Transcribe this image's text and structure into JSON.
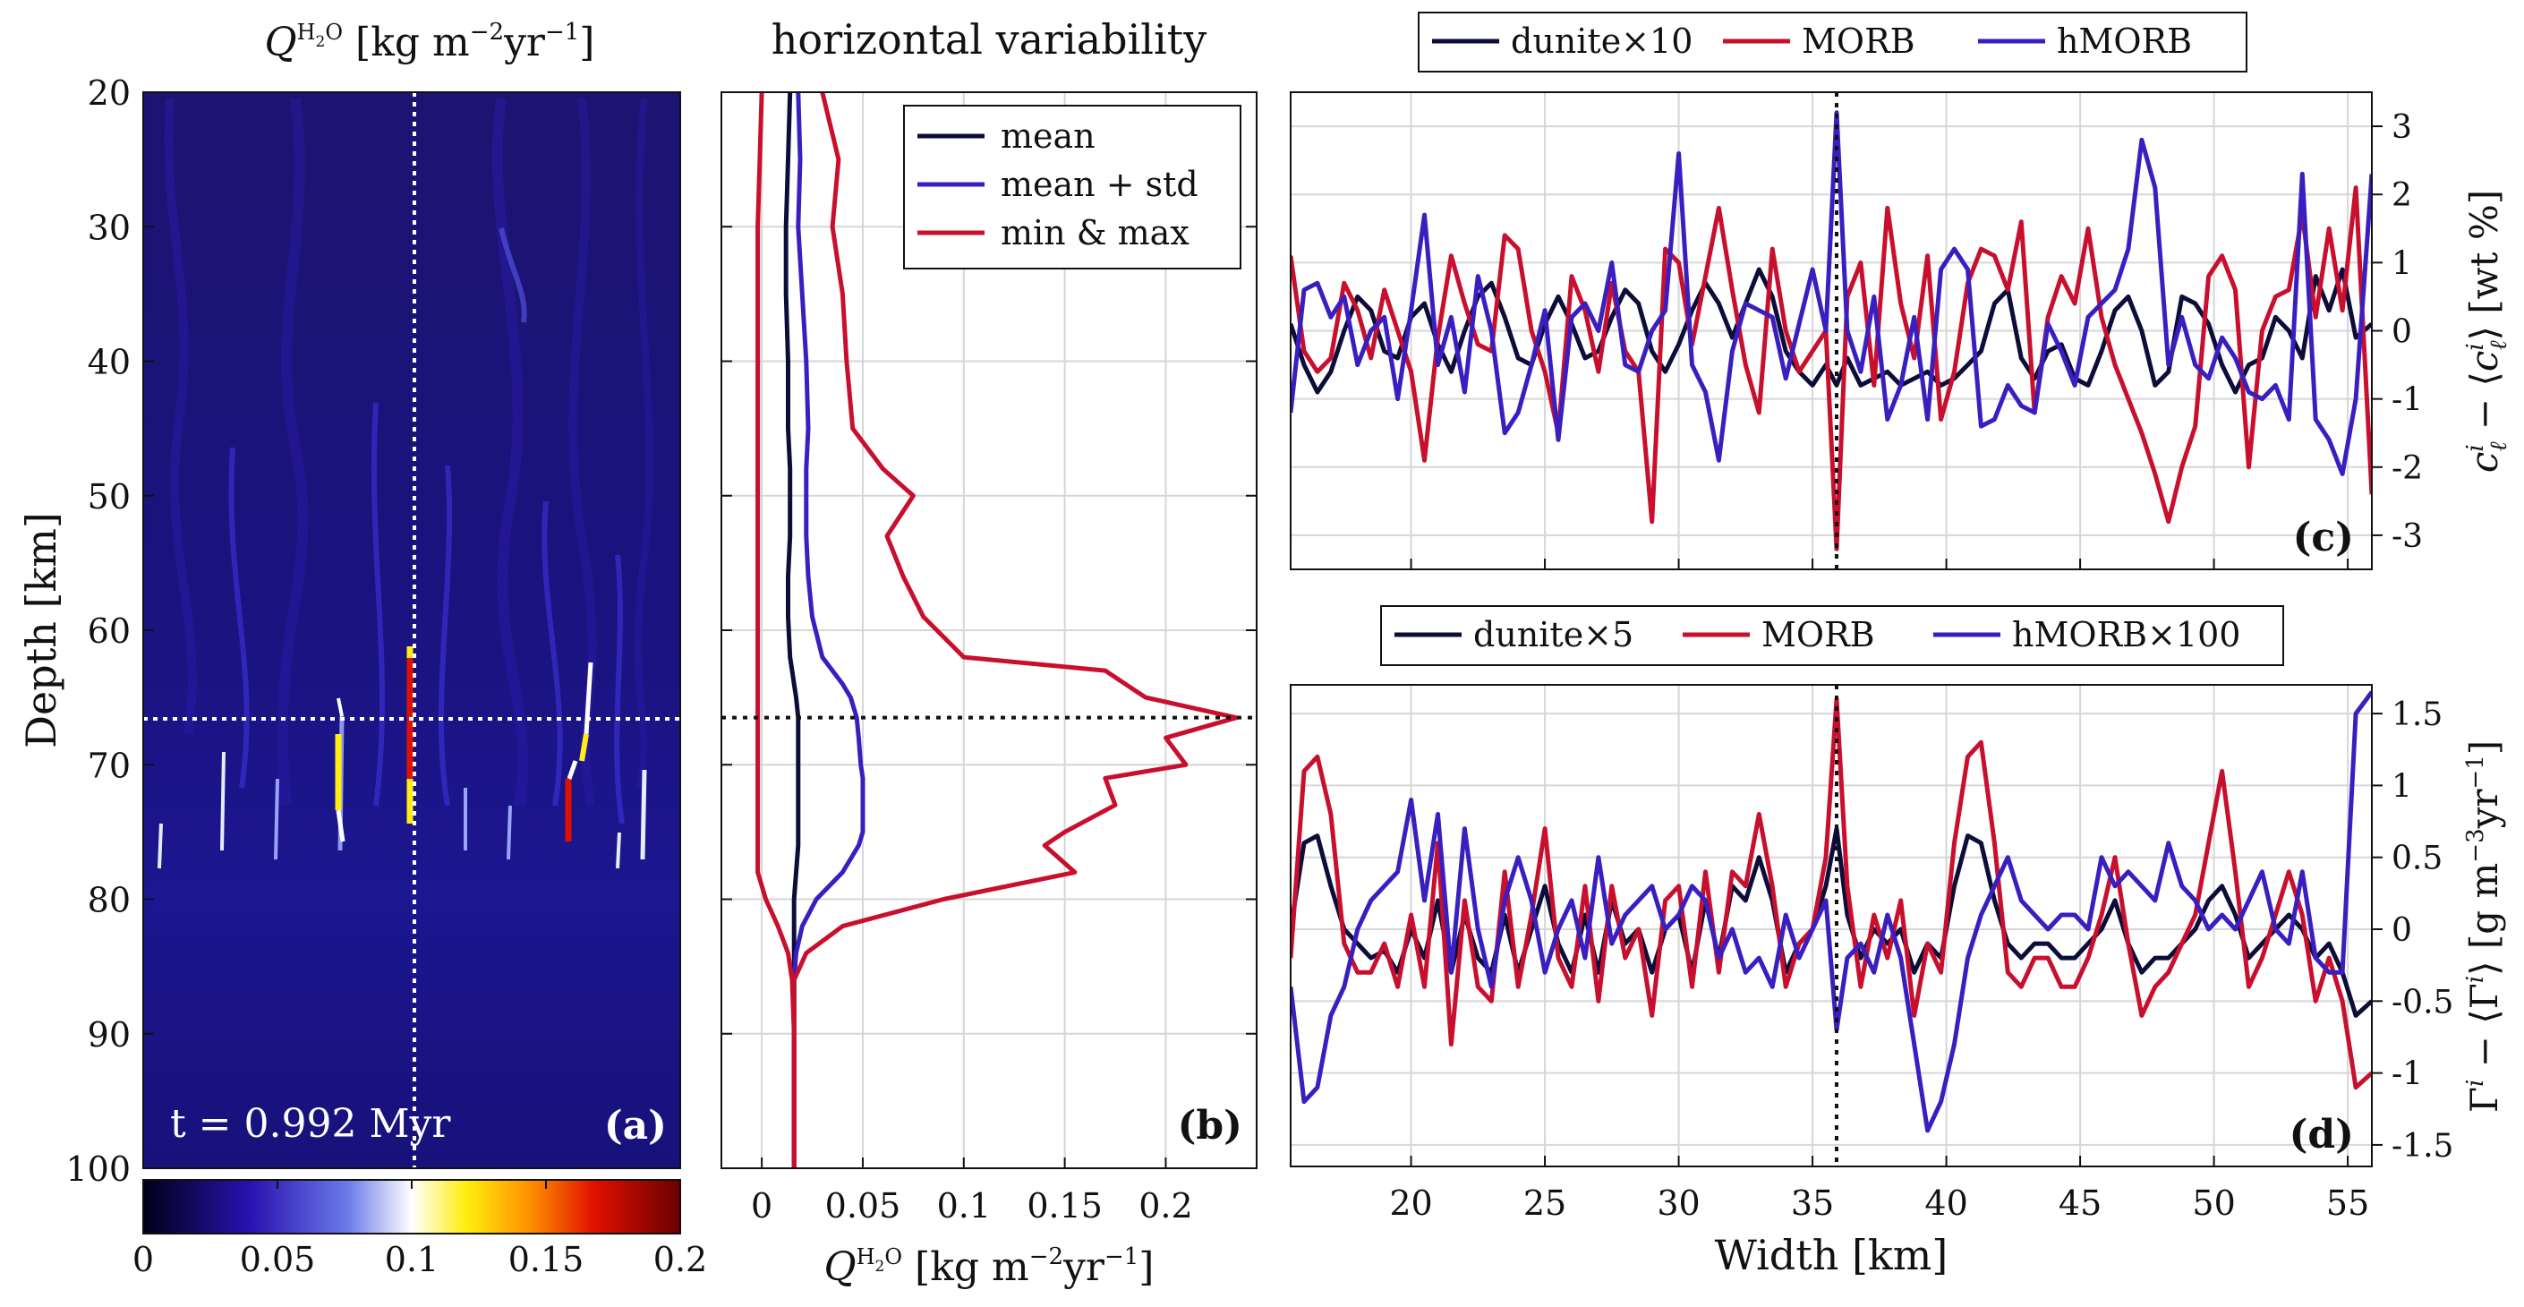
{
  "panel_a": {
    "title": "Q^H2O [kg m^-2 yr^-1]",
    "ylabel": "Depth [km]",
    "annotation": "t = 0.992 Myr",
    "panel_label": "(a)"
  },
  "panel_b": {
    "title": "horizontal variability",
    "xlabel": "Q^H2O [kg m^-2 yr^-1]",
    "panel_label": "(b)"
  },
  "panel_c": {
    "panel_label": "(c)",
    "ylabel": "c_l^i − ⟨c_l^i⟩ [wt %]"
  },
  "panel_d": {
    "panel_label": "(d)",
    "ylabel": "Γ^i − ⟨Γ^i⟩ [g m^-3 yr^-1]",
    "xlabel": "Width [km]"
  },
  "colors": {
    "dark": "#0d0d3a",
    "red": "#c8102e",
    "blue": "#3a1fc0",
    "field_bg": "#1a1370"
  },
  "chart_data": [
    {
      "id": "a",
      "type": "heatmap",
      "title": "Q^H2O [kg m^-2 yr^-1]",
      "ylabel": "Depth [km]",
      "ylim": [
        20,
        100
      ],
      "yticks": [
        20,
        30,
        40,
        50,
        60,
        70,
        80,
        90,
        100
      ],
      "colorbar": {
        "ticks": [
          0,
          0.05,
          0.1,
          0.15,
          0.2
        ],
        "range": [
          0,
          0.2
        ]
      },
      "crosshair": {
        "depth": 66.5,
        "width_km": 35.9
      },
      "annotation": "t = 0.992 Myr"
    },
    {
      "id": "b",
      "type": "line",
      "title": "horizontal variability",
      "xlim": [
        -0.02,
        0.245
      ],
      "xticks": [
        0,
        0.05,
        0.1,
        0.15,
        0.2
      ],
      "xtick_labels": [
        "0",
        "0.05",
        "0.1",
        "0.15",
        "0.2"
      ],
      "ylim": [
        20,
        100
      ],
      "marker_depth": 66.5,
      "legend": [
        "mean",
        "mean + std",
        "min & max"
      ],
      "depth": [
        20,
        25,
        30,
        35,
        40,
        45,
        48,
        50,
        53,
        56,
        59,
        62,
        63,
        64,
        65,
        66.5,
        68,
        70,
        71,
        73,
        75,
        76,
        78,
        80,
        82,
        84,
        86,
        90,
        95,
        100
      ],
      "series": [
        {
          "name": "mean",
          "values": [
            0.014,
            0.013,
            0.012,
            0.012,
            0.013,
            0.013,
            0.014,
            0.014,
            0.014,
            0.013,
            0.013,
            0.014,
            0.015,
            0.016,
            0.017,
            0.018,
            0.018,
            0.018,
            0.018,
            0.018,
            0.018,
            0.018,
            0.017,
            0.016,
            0.016,
            0.016,
            0.016,
            0.016,
            0.016,
            0.016
          ]
        },
        {
          "name": "mean + std",
          "values": [
            0.018,
            0.019,
            0.018,
            0.02,
            0.022,
            0.023,
            0.022,
            0.022,
            0.022,
            0.023,
            0.025,
            0.03,
            0.035,
            0.04,
            0.044,
            0.047,
            0.048,
            0.049,
            0.05,
            0.05,
            0.05,
            0.048,
            0.04,
            0.027,
            0.02,
            0.017,
            0.016,
            0.016,
            0.016,
            0.016
          ]
        },
        {
          "name": "min",
          "values": [
            0.0,
            -0.001,
            -0.002,
            -0.002,
            -0.002,
            -0.002,
            -0.002,
            -0.002,
            -0.002,
            -0.002,
            -0.002,
            -0.002,
            -0.002,
            -0.002,
            -0.002,
            -0.002,
            -0.002,
            -0.002,
            -0.002,
            -0.002,
            -0.002,
            -0.002,
            -0.002,
            0.002,
            0.008,
            0.013,
            0.015,
            0.016,
            0.016,
            0.016
          ]
        },
        {
          "name": "max",
          "values": [
            0.03,
            0.038,
            0.035,
            0.04,
            0.042,
            0.045,
            0.06,
            0.075,
            0.062,
            0.07,
            0.08,
            0.1,
            0.17,
            0.18,
            0.19,
            0.235,
            0.2,
            0.21,
            0.17,
            0.175,
            0.15,
            0.14,
            0.155,
            0.09,
            0.04,
            0.022,
            0.016,
            0.016,
            0.016,
            0.016
          ]
        }
      ]
    },
    {
      "id": "c",
      "type": "line",
      "ylabel": "c_l^i − ⟨c_l^i⟩ [wt %]",
      "xlim": [
        15.5,
        55.9
      ],
      "ylim": [
        -3.5,
        3.5
      ],
      "yticks": [
        -3,
        -2,
        -1,
        0,
        1,
        2,
        3
      ],
      "marker_x": 35.9,
      "legend": [
        "dunite×10",
        "MORB",
        "hMORB"
      ],
      "x": [
        15.5,
        16.0,
        16.5,
        17.0,
        17.5,
        18.0,
        18.5,
        19.0,
        19.5,
        20.0,
        20.5,
        21.0,
        21.5,
        22.0,
        22.5,
        23.0,
        23.5,
        24.0,
        24.5,
        25.0,
        25.5,
        26.0,
        26.5,
        27.0,
        27.5,
        28.0,
        28.5,
        29.0,
        29.5,
        30.0,
        30.5,
        31.0,
        31.5,
        32.0,
        32.5,
        33.0,
        33.5,
        34.0,
        34.5,
        35.0,
        35.5,
        35.9,
        36.3,
        36.8,
        37.3,
        37.8,
        38.3,
        38.8,
        39.3,
        39.8,
        40.3,
        40.8,
        41.3,
        41.8,
        42.3,
        42.8,
        43.3,
        43.8,
        44.3,
        44.8,
        45.3,
        45.8,
        46.3,
        46.8,
        47.3,
        47.8,
        48.3,
        48.8,
        49.3,
        49.8,
        50.3,
        50.8,
        51.3,
        51.8,
        52.3,
        52.8,
        53.3,
        53.8,
        54.3,
        54.8,
        55.3,
        55.9
      ],
      "series": [
        {
          "name": "dunite×10",
          "values": [
            0.1,
            -0.5,
            -0.9,
            -0.6,
            0.0,
            0.5,
            0.3,
            -0.3,
            -0.4,
            0.2,
            0.4,
            -0.2,
            -0.6,
            0.0,
            0.5,
            0.7,
            0.2,
            -0.4,
            -0.5,
            0.1,
            0.5,
            0.1,
            -0.4,
            -0.3,
            0.2,
            0.6,
            0.4,
            -0.3,
            -0.6,
            -0.2,
            0.3,
            0.7,
            0.4,
            -0.1,
            0.4,
            0.9,
            0.5,
            -0.3,
            -0.6,
            -0.8,
            -0.5,
            -0.8,
            -0.4,
            -0.8,
            -0.7,
            -0.6,
            -0.8,
            -0.7,
            -0.6,
            -0.8,
            -0.7,
            -0.5,
            -0.3,
            0.4,
            0.6,
            -0.4,
            -0.7,
            -0.3,
            -0.2,
            -0.7,
            -0.8,
            -0.3,
            0.3,
            0.5,
            0.0,
            -0.8,
            -0.6,
            0.5,
            0.4,
            0.1,
            -0.5,
            -0.9,
            -0.5,
            -0.4,
            0.2,
            0.0,
            -0.4,
            0.8,
            0.3,
            0.9,
            -0.1,
            0.1
          ]
        },
        {
          "name": "MORB",
          "values": [
            1.1,
            -0.3,
            -0.6,
            -0.4,
            0.7,
            0.3,
            -0.4,
            0.6,
            0.0,
            -0.6,
            -1.9,
            -0.1,
            1.1,
            0.4,
            -0.2,
            -0.3,
            1.4,
            1.2,
            0.0,
            -0.6,
            -1.5,
            0.8,
            0.3,
            -0.6,
            0.7,
            -0.3,
            -0.6,
            -2.8,
            1.2,
            1.0,
            -0.2,
            0.8,
            1.8,
            0.6,
            -0.5,
            -1.2,
            1.2,
            0.0,
            -0.6,
            -0.3,
            0.0,
            -3.2,
            0.5,
            1.0,
            -0.8,
            1.8,
            0.4,
            -0.4,
            1.1,
            -1.3,
            -0.6,
            0.7,
            1.2,
            1.1,
            0.6,
            1.6,
            -1.2,
            0.2,
            0.8,
            0.4,
            1.5,
            0.2,
            -0.5,
            -1.0,
            -1.5,
            -2.1,
            -2.8,
            -2.0,
            -1.4,
            0.8,
            1.1,
            0.6,
            -2.0,
            0.0,
            0.5,
            0.6,
            1.7,
            0.2,
            1.5,
            0.3,
            2.1,
            -2.4
          ]
        },
        {
          "name": "hMORB",
          "values": [
            -1.2,
            0.6,
            0.7,
            0.2,
            0.5,
            -0.5,
            0.0,
            0.2,
            -1.0,
            0.3,
            1.7,
            -0.5,
            0.2,
            -0.9,
            0.8,
            0.0,
            -1.5,
            -1.2,
            -0.5,
            0.3,
            -1.6,
            0.2,
            0.4,
            0.0,
            1.0,
            -0.5,
            -0.6,
            0.0,
            0.3,
            2.6,
            -0.5,
            -0.9,
            -1.9,
            -0.3,
            0.4,
            0.3,
            0.2,
            -0.7,
            0.1,
            0.9,
            0.0,
            3.2,
            0.0,
            -0.6,
            0.5,
            -1.3,
            -0.8,
            0.2,
            -1.3,
            0.9,
            1.2,
            0.9,
            -1.4,
            -1.3,
            -0.8,
            -1.1,
            -1.2,
            0.1,
            -0.3,
            -0.8,
            0.2,
            0.4,
            0.6,
            1.2,
            2.8,
            2.1,
            -0.5,
            0.2,
            -0.5,
            -0.7,
            -0.1,
            -0.4,
            -0.9,
            -1.0,
            -0.8,
            -1.3,
            2.3,
            -1.3,
            -1.6,
            -2.1,
            -1.0,
            2.3
          ]
        }
      ]
    },
    {
      "id": "d",
      "type": "line",
      "ylabel": "Γ^i − ⟨Γ^i⟩ [g m^-3 yr^-1]",
      "xlabel": "Width [km]",
      "xlim": [
        15.5,
        55.9
      ],
      "xticks": [
        20,
        25,
        30,
        35,
        40,
        45,
        50,
        55
      ],
      "ylim": [
        -1.65,
        1.7
      ],
      "yticks": [
        -1.5,
        -1,
        -0.5,
        0,
        0.5,
        1,
        1.5
      ],
      "ytick_labels": [
        "-1.5",
        "-1",
        "-0.5",
        "0",
        "0.5",
        "1",
        "1.5"
      ],
      "marker_x": 35.9,
      "legend": [
        "dunite×5",
        "MORB",
        "hMORB×100"
      ],
      "x": [
        15.5,
        16.0,
        16.5,
        17.0,
        17.5,
        18.0,
        18.5,
        19.0,
        19.5,
        20.0,
        20.5,
        21.0,
        21.5,
        22.0,
        22.5,
        23.0,
        23.5,
        24.0,
        24.5,
        25.0,
        25.5,
        26.0,
        26.5,
        27.0,
        27.5,
        28.0,
        28.5,
        29.0,
        29.5,
        30.0,
        30.5,
        31.0,
        31.5,
        32.0,
        32.5,
        33.0,
        33.5,
        34.0,
        34.5,
        35.0,
        35.5,
        35.9,
        36.3,
        36.8,
        37.3,
        37.8,
        38.3,
        38.8,
        39.3,
        39.8,
        40.3,
        40.8,
        41.3,
        41.8,
        42.3,
        42.8,
        43.3,
        43.8,
        44.3,
        44.8,
        45.3,
        45.8,
        46.3,
        46.8,
        47.3,
        47.8,
        48.3,
        48.8,
        49.3,
        49.8,
        50.3,
        50.8,
        51.3,
        51.8,
        52.3,
        52.8,
        53.3,
        53.8,
        54.3,
        54.8,
        55.3,
        55.9
      ],
      "series": [
        {
          "name": "dunite×5",
          "values": [
            0.0,
            0.6,
            0.65,
            0.3,
            0.0,
            -0.1,
            -0.2,
            -0.15,
            -0.3,
            0.0,
            -0.2,
            0.2,
            -0.3,
            0.1,
            -0.2,
            -0.3,
            0.1,
            -0.3,
            0.0,
            0.3,
            -0.1,
            -0.3,
            0.1,
            -0.3,
            0.2,
            -0.1,
            0.0,
            -0.3,
            0.0,
            0.1,
            -0.3,
            0.2,
            -0.2,
            0.3,
            0.2,
            0.5,
            0.2,
            -0.3,
            -0.1,
            0.0,
            0.3,
            0.7,
            0.1,
            -0.2,
            0.0,
            -0.1,
            0.0,
            -0.3,
            -0.1,
            -0.2,
            0.3,
            0.65,
            0.6,
            0.2,
            -0.1,
            -0.2,
            -0.1,
            -0.1,
            -0.2,
            -0.2,
            -0.1,
            0.0,
            0.2,
            -0.1,
            -0.3,
            -0.2,
            -0.2,
            -0.1,
            0.0,
            0.2,
            0.3,
            0.1,
            -0.2,
            -0.1,
            0.0,
            0.1,
            0.0,
            -0.2,
            -0.1,
            -0.3,
            -0.6,
            -0.5
          ]
        },
        {
          "name": "MORB",
          "values": [
            -0.2,
            1.1,
            1.2,
            0.8,
            -0.1,
            -0.3,
            -0.3,
            -0.1,
            -0.4,
            0.1,
            -0.4,
            0.6,
            -0.8,
            0.2,
            -0.4,
            -0.5,
            0.4,
            -0.4,
            0.1,
            0.7,
            -0.2,
            -0.4,
            0.3,
            -0.5,
            0.3,
            -0.2,
            0.0,
            -0.6,
            0.2,
            0.3,
            -0.4,
            0.4,
            -0.3,
            0.4,
            0.3,
            0.8,
            0.3,
            -0.4,
            -0.1,
            0.0,
            0.5,
            1.6,
            0.3,
            -0.4,
            0.1,
            -0.2,
            0.2,
            -0.6,
            -0.1,
            -0.3,
            0.6,
            1.2,
            1.3,
            0.6,
            -0.3,
            -0.4,
            -0.2,
            -0.2,
            -0.4,
            -0.4,
            -0.2,
            0.1,
            0.5,
            -0.1,
            -0.6,
            -0.4,
            -0.3,
            -0.1,
            0.1,
            0.6,
            1.1,
            0.4,
            -0.4,
            -0.2,
            0.1,
            0.4,
            0.1,
            -0.5,
            -0.2,
            -0.5,
            -1.1,
            -1.0
          ]
        },
        {
          "name": "hMORB×100",
          "values": [
            -0.4,
            -1.2,
            -1.1,
            -0.6,
            -0.4,
            0.0,
            0.2,
            0.3,
            0.4,
            0.9,
            0.2,
            0.8,
            -0.3,
            0.7,
            0.0,
            -0.4,
            0.2,
            0.5,
            0.2,
            -0.3,
            0.0,
            0.2,
            -0.2,
            0.5,
            -0.1,
            0.1,
            0.2,
            0.3,
            0.0,
            0.1,
            0.3,
            0.2,
            -0.2,
            0.0,
            -0.3,
            -0.2,
            -0.4,
            0.1,
            -0.2,
            0.0,
            0.2,
            -0.7,
            -0.2,
            -0.1,
            -0.3,
            0.1,
            -0.2,
            -0.8,
            -1.4,
            -1.2,
            -0.8,
            -0.2,
            0.1,
            0.3,
            0.5,
            0.2,
            0.1,
            0.0,
            0.1,
            0.1,
            0.0,
            0.5,
            0.3,
            0.4,
            0.3,
            0.2,
            0.6,
            0.3,
            0.2,
            0.0,
            0.1,
            0.0,
            0.2,
            0.4,
            0.0,
            -0.1,
            0.4,
            -0.2,
            -0.3,
            -0.3,
            1.5,
            1.65
          ]
        }
      ]
    }
  ]
}
